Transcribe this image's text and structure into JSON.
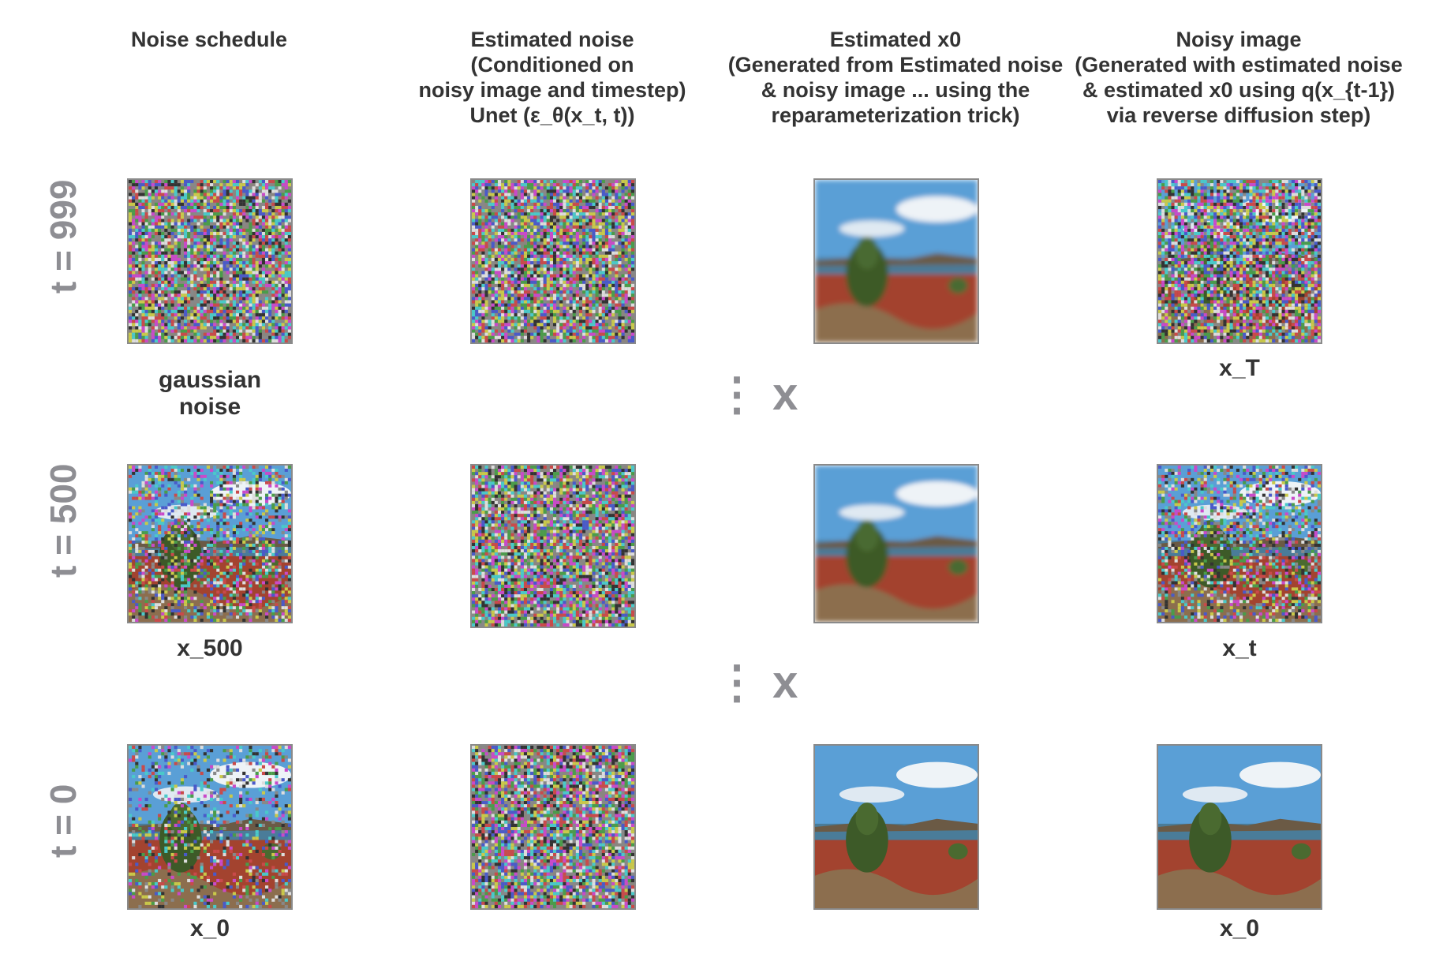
{
  "headers": [
    {
      "lines": [
        "Noise schedule"
      ]
    },
    {
      "lines": [
        "Estimated noise",
        "(Conditioned on",
        "noisy image and timestep)",
        "Unet (ε_θ(x_t, t))"
      ]
    },
    {
      "lines": [
        "Estimated x0",
        "(Generated from Estimated noise",
        "& noisy image ... using the",
        "reparameterization trick)"
      ]
    },
    {
      "lines": [
        "Noisy image",
        "(Generated with estimated noise",
        "& estimated x0 using q(x_{t-1})",
        "via reverse diffusion step)"
      ]
    }
  ],
  "rows": [
    {
      "label": "t = 999",
      "c1_caption": "gaussian noise",
      "c4_caption": "x_T"
    },
    {
      "label": "t = 500",
      "c1_caption": "x_500",
      "c4_caption": "x_t"
    },
    {
      "label": "t = 0",
      "c1_caption": "x_0",
      "c4_caption": "x_0"
    }
  ],
  "separators": [
    "⋮ x",
    "⋮ x"
  ],
  "colors": {
    "header_text": "#333333",
    "row_label": "#8e8e93",
    "tile_border": "#8a8a8a"
  }
}
